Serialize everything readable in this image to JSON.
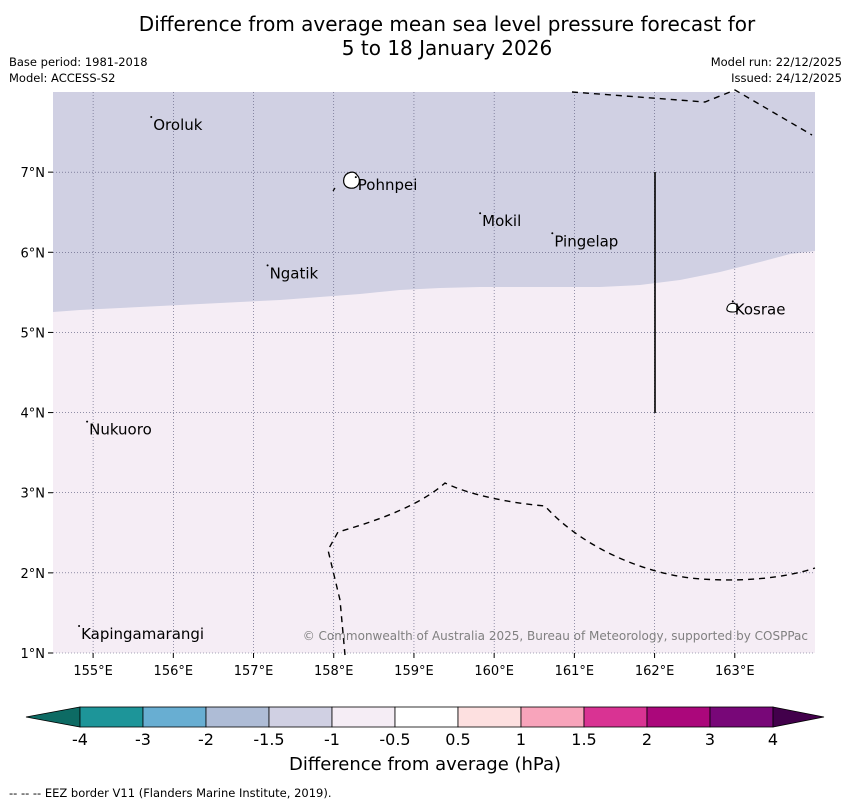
{
  "title": {
    "line1": "Difference from average mean sea level pressure forecast for",
    "line2": "5 to 18 January 2026"
  },
  "meta": {
    "base_period": "Base period: 1981-2018",
    "model": "Model: ACCESS-S2",
    "model_run": "Model run: 22/12/2025",
    "issued": "Issued: 24/12/2025"
  },
  "map": {
    "lon_range": [
      154.5,
      164.0
    ],
    "lat_range": [
      1.0,
      8.0
    ],
    "lon_ticks": [
      "155°E",
      "156°E",
      "157°E",
      "158°E",
      "159°E",
      "160°E",
      "161°E",
      "162°E",
      "163°E"
    ],
    "lat_ticks": [
      "1°N",
      "2°N",
      "3°N",
      "4°N",
      "5°N",
      "6°N",
      "7°N"
    ],
    "places": [
      {
        "name": "Oroluk",
        "lon": 155.75,
        "lat": 7.6
      },
      {
        "name": "Pohnpei",
        "lon": 158.3,
        "lat": 6.85
      },
      {
        "name": "Mokil",
        "lon": 159.85,
        "lat": 6.4
      },
      {
        "name": "Pingelap",
        "lon": 160.75,
        "lat": 6.15
      },
      {
        "name": "Ngatik",
        "lon": 157.2,
        "lat": 5.75
      },
      {
        "name": "Kosrae",
        "lon": 163.0,
        "lat": 5.3
      },
      {
        "name": "Nukuoro",
        "lon": 154.95,
        "lat": 3.8
      },
      {
        "name": "Kapingamarangi",
        "lon": 154.85,
        "lat": 1.25
      }
    ],
    "regions": [
      {
        "category": "-1.5 to -1",
        "color": "#d0d0e3"
      },
      {
        "category": "-1 to -0.5",
        "color": "#f5edf5"
      }
    ],
    "copyright": "© Commonwealth of Australia 2025, Bureau of Meteorology, supported by COSPPac"
  },
  "colorbar": {
    "colors": [
      "#0d6b64",
      "#1d9599",
      "#68aed2",
      "#aebcd6",
      "#d0d0e3",
      "#f5edf5",
      "#ffffff",
      "#fde0e0",
      "#f8a4bb",
      "#d93393",
      "#ab077b",
      "#780778",
      "#42004b"
    ],
    "ticks": [
      "-4",
      "-3",
      "-2",
      "-1.5",
      "-1",
      "-0.5",
      "0.5",
      "1",
      "1.5",
      "2",
      "3",
      "4"
    ],
    "label": "Difference from average (hPa)"
  },
  "legend_note": "--  --  -- EEZ border V11 (Flanders Marine Institute, 2019)."
}
